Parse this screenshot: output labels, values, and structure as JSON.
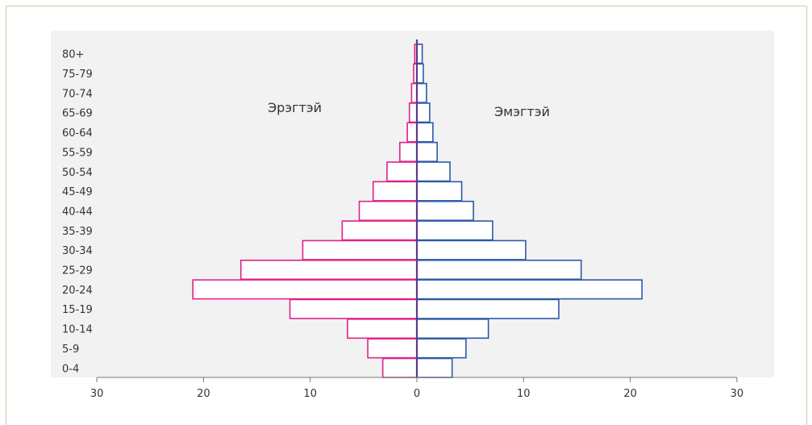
{
  "chart_data": {
    "type": "bar",
    "orientation": "horizontal-population-pyramid",
    "categories": [
      "0-4",
      "5-9",
      "10-14",
      "15-19",
      "20-24",
      "25-29",
      "30-34",
      "35-39",
      "40-44",
      "45-49",
      "50-54",
      "55-59",
      "60-64",
      "65-69",
      "70-74",
      "75-79",
      "80+"
    ],
    "series": [
      {
        "name": "Эрэгтэй",
        "side": "left",
        "color": "#e0218a",
        "values": [
          3.2,
          4.6,
          6.5,
          11.9,
          21.0,
          16.5,
          10.7,
          7.0,
          5.4,
          4.1,
          2.8,
          1.6,
          0.9,
          0.7,
          0.5,
          0.3,
          0.2
        ]
      },
      {
        "name": "Эмэгтэй",
        "side": "right",
        "color": "#2b5aa8",
        "values": [
          3.3,
          4.6,
          6.7,
          13.3,
          21.1,
          15.4,
          10.2,
          7.1,
          5.3,
          4.2,
          3.1,
          1.9,
          1.5,
          1.2,
          0.9,
          0.6,
          0.5
        ]
      }
    ],
    "xlim": [
      -30,
      30
    ],
    "xticks": [
      -30,
      -20,
      -10,
      0,
      10,
      20,
      30
    ],
    "xtick_labels": [
      "30",
      "20",
      "10",
      "0",
      "10",
      "20",
      "30"
    ],
    "xlabel": "",
    "ylabel": "",
    "title": "",
    "grid": false,
    "center_line_color": "#5a3a8c"
  }
}
